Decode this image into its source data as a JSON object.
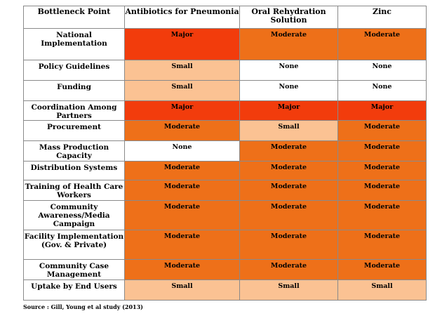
{
  "headers": [
    "Bottleneck Point",
    "Antibiotics for Pneumonia",
    "Oral Rehydration Solution",
    "Zinc"
  ],
  "colors": {
    "Major": "#f23c0c",
    "Moderate": "#ee7019",
    "Small": "#fbc293",
    "None": "#ffffff"
  },
  "rows": [
    {
      "label": "National Implementation",
      "cells": [
        "Major",
        "Moderate",
        "Moderate"
      ]
    },
    {
      "label": "Policy Guidelines",
      "cells": [
        "Small",
        "None",
        "None"
      ]
    },
    {
      "label": "Funding",
      "cells": [
        "Small",
        "None",
        "None"
      ]
    },
    {
      "label": "Coordination Among Partners",
      "cells": [
        "Major",
        "Major",
        "Major"
      ]
    },
    {
      "label": "Procurement",
      "cells": [
        "Moderate",
        "Small",
        "Moderate"
      ]
    },
    {
      "label": "Mass Production Capacity",
      "cells": [
        "None",
        "Moderate",
        "Moderate"
      ]
    },
    {
      "label": "Distribution Systems",
      "cells": [
        "Moderate",
        "Moderate",
        "Moderate"
      ]
    },
    {
      "label": "Training of Health Care Workers",
      "cells": [
        "Moderate",
        "Moderate",
        "Moderate"
      ]
    },
    {
      "label": "Community Awareness/Media Campaign",
      "cells": [
        "Moderate",
        "Moderate",
        "Moderate"
      ]
    },
    {
      "label": "Facility Implementation (Gov. & Private)",
      "cells": [
        "Moderate",
        "Moderate",
        "Moderate"
      ]
    },
    {
      "label": "Community Case Management",
      "cells": [
        "Moderate",
        "Moderate",
        "Moderate"
      ]
    },
    {
      "label": "Uptake by End Users",
      "cells": [
        "Small",
        "Small",
        "Small"
      ]
    }
  ],
  "source": "Source : Gill, Young et al study (2013)"
}
